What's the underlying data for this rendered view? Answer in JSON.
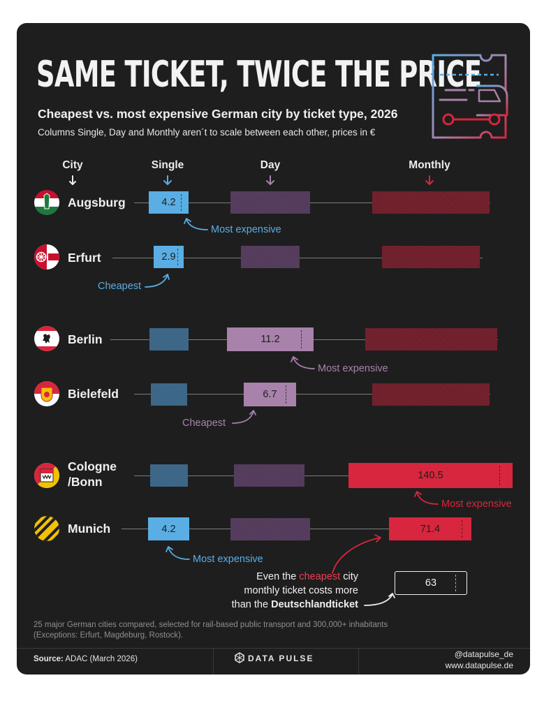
{
  "header": {
    "title": "SAME TICKET, TWICE THE PRICE",
    "subtitle": "Cheapest vs. most expensive German city by ticket type, 2026",
    "description": "Columns Single, Day and Monthly aren´t to scale between each other, prices in €",
    "columns": {
      "city": "City",
      "single": "Single",
      "day": "Day",
      "monthly": "Monthly"
    }
  },
  "colors": {
    "background": "#1e1e1e",
    "single": "#5aaee4",
    "day": "#a882aa",
    "monthly": "#d7263d",
    "single_hatch": "#3a6485",
    "day_hatch": "#52395a",
    "monthly_hatch": "#6e1d29"
  },
  "rows": [
    {
      "city": "Augsburg",
      "flag": "augsburg-flag",
      "single": "4.2",
      "day": "",
      "monthly": ""
    },
    {
      "city": "Erfurt",
      "flag": "erfurt-flag",
      "single": "2.9",
      "day": "",
      "monthly": ""
    },
    {
      "city": "Berlin",
      "flag": "berlin-flag",
      "single": "",
      "day": "11.2",
      "monthly": ""
    },
    {
      "city": "Bielefeld",
      "flag": "bielefeld-flag",
      "single": "",
      "day": "6.7",
      "monthly": ""
    },
    {
      "city_line1": "Cologne",
      "city_line2": "/Bonn",
      "flag": "cologne-bonn-flag",
      "single": "",
      "day": "",
      "monthly": "140.5"
    },
    {
      "city": "Munich",
      "flag": "munich-flag",
      "single": "4.2",
      "day": "",
      "monthly": "71.4"
    }
  ],
  "chart_data": {
    "type": "table",
    "title": "SAME TICKET, TWICE THE PRICE",
    "subtitle": "Cheapest vs. most expensive German city by ticket type, 2026",
    "columns": [
      "City",
      "Single",
      "Day",
      "Monthly"
    ],
    "unit": "€",
    "rows": [
      {
        "city": "Augsburg",
        "single": 4.2,
        "single_label": "Most expensive"
      },
      {
        "city": "Erfurt",
        "single": 2.9,
        "single_label": "Cheapest"
      },
      {
        "city": "Berlin",
        "day": 11.2,
        "day_label": "Most expensive"
      },
      {
        "city": "Bielefeld",
        "day": 6.7,
        "day_label": "Cheapest"
      },
      {
        "city": "Cologne /Bonn",
        "monthly": 140.5,
        "monthly_label": "Most expensive"
      },
      {
        "city": "Munich",
        "single": 4.2,
        "single_label": "Most expensive",
        "monthly": 71.4
      }
    ],
    "reference": {
      "label": "Deutschlandticket",
      "value": 63
    }
  },
  "annotations": {
    "most_expensive": "Most expensive",
    "cheapest": "Cheapest"
  },
  "deutschland_note": {
    "line1_pre": "Even the",
    "line1_highlight": "cheapest",
    "line1_post": "city",
    "line2": "monthly ticket costs more",
    "line3_pre": "than the",
    "line3_bold": "Deutschlandticket",
    "ticket_value": "63"
  },
  "footer": {
    "footnote_line1": "25 major German cities compared, selected for rail-based public transport and 300,000+ inhabitants",
    "footnote_line2": "(Exceptions: Erfurt, Magdeburg, Rostock).",
    "source_label": "Source:",
    "source_text": "ADAC (March 2026)",
    "brand": "DATA PULSE",
    "handle": "@datapulse_de",
    "website": "www.datapulse.de"
  }
}
